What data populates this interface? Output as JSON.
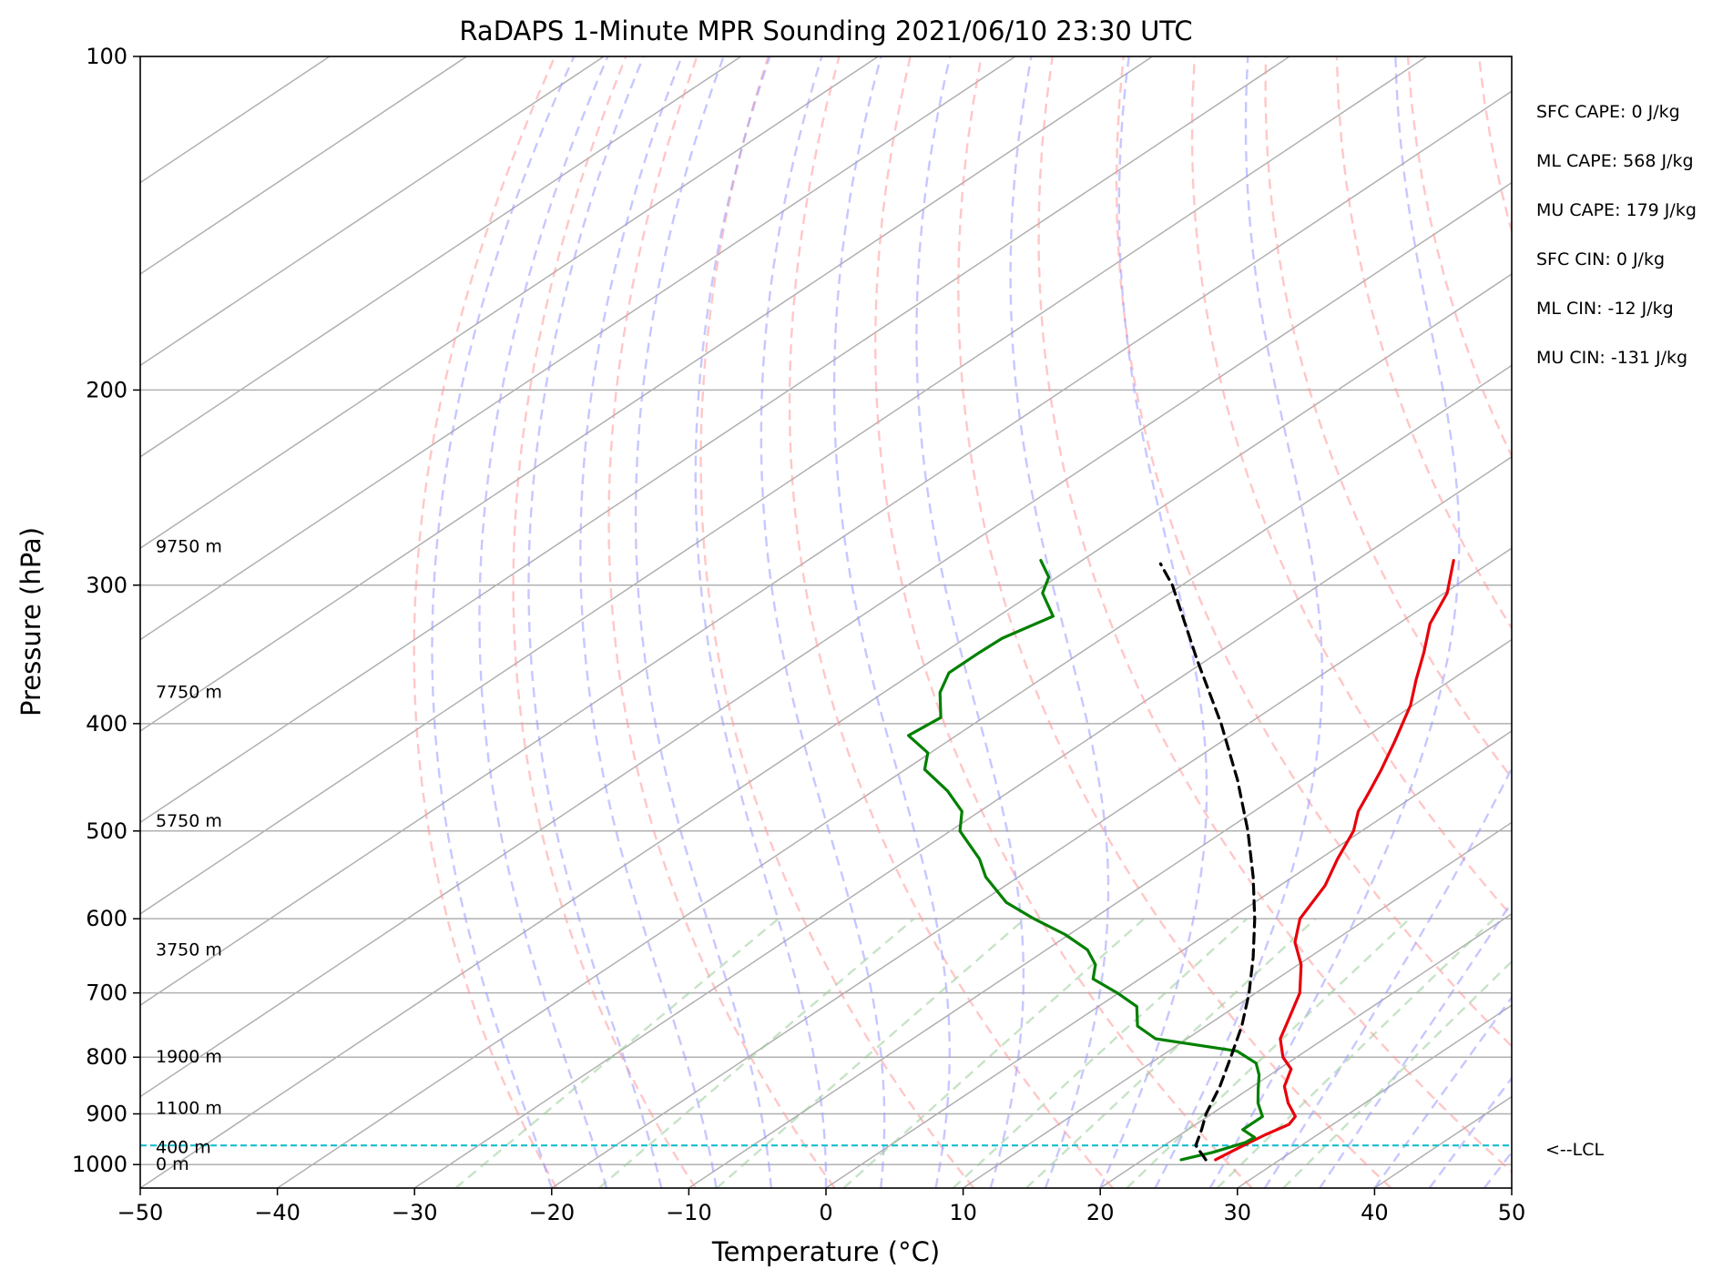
{
  "chart_data": {
    "type": "line",
    "title": "RaDAPS 1-Minute MPR Sounding 2021/06/10 23:30 UTC",
    "xlabel": "Temperature (°C)",
    "ylabel": "Pressure (hPa)",
    "xlim": [
      -50,
      50
    ],
    "ylim": [
      1050,
      100
    ],
    "y_scale": "log",
    "skew": "skew-T",
    "grid": true,
    "x_ticks": [
      -50,
      -40,
      -30,
      -20,
      -10,
      0,
      10,
      20,
      30,
      40,
      50
    ],
    "x_tick_labels": [
      "−50",
      "−40",
      "−30",
      "−20",
      "−10",
      "0",
      "10",
      "20",
      "30",
      "40",
      "50"
    ],
    "y_ticks": [
      1000,
      900,
      800,
      700,
      600,
      500,
      400,
      300,
      200,
      100
    ],
    "y_tick_labels": [
      "1000",
      "900",
      "800",
      "700",
      "600",
      "500",
      "400",
      "300",
      "200",
      "100"
    ],
    "series": [
      {
        "color": "#e8000b",
        "points": [
          {
            "p": 990,
            "t": 25.3
          },
          {
            "p": 965,
            "t": 25.7
          },
          {
            "p": 940,
            "t": 26.2
          },
          {
            "p": 920,
            "t": 26.8
          },
          {
            "p": 905,
            "t": 26.4
          },
          {
            "p": 880,
            "t": 24.4
          },
          {
            "p": 850,
            "t": 22.3
          },
          {
            "p": 820,
            "t": 20.9
          },
          {
            "p": 800,
            "t": 19.0
          },
          {
            "p": 770,
            "t": 16.8
          },
          {
            "p": 740,
            "t": 15.3
          },
          {
            "p": 700,
            "t": 13.2
          },
          {
            "p": 660,
            "t": 10.2
          },
          {
            "p": 630,
            "t": 7.3
          },
          {
            "p": 600,
            "t": 5.1
          },
          {
            "p": 560,
            "t": 3.3
          },
          {
            "p": 530,
            "t": 1.3
          },
          {
            "p": 500,
            "t": -0.6
          },
          {
            "p": 480,
            "t": -2.4
          },
          {
            "p": 460,
            "t": -3.8
          },
          {
            "p": 440,
            "t": -5.3
          },
          {
            "p": 415,
            "t": -7.4
          },
          {
            "p": 385,
            "t": -10.2
          },
          {
            "p": 365,
            "t": -12.6
          },
          {
            "p": 345,
            "t": -15.0
          },
          {
            "p": 325,
            "t": -17.7
          },
          {
            "p": 305,
            "t": -19.8
          },
          {
            "p": 285,
            "t": -22.9
          }
        ]
      },
      {
        "color": "#008000",
        "points": [
          {
            "p": 990,
            "t": 22.8
          },
          {
            "p": 975,
            "t": 24.3
          },
          {
            "p": 955,
            "t": 25.6
          },
          {
            "p": 945,
            "t": 25.7
          },
          {
            "p": 930,
            "t": 24.0
          },
          {
            "p": 905,
            "t": 24.0
          },
          {
            "p": 880,
            "t": 22.2
          },
          {
            "p": 855,
            "t": 20.7
          },
          {
            "p": 830,
            "t": 19.2
          },
          {
            "p": 810,
            "t": 17.7
          },
          {
            "p": 790,
            "t": 15.0
          },
          {
            "p": 770,
            "t": 7.7
          },
          {
            "p": 750,
            "t": 5.0
          },
          {
            "p": 720,
            "t": 2.8
          },
          {
            "p": 700,
            "t": -0.1
          },
          {
            "p": 680,
            "t": -3.4
          },
          {
            "p": 660,
            "t": -4.8
          },
          {
            "p": 640,
            "t": -7.0
          },
          {
            "p": 620,
            "t": -10.3
          },
          {
            "p": 600,
            "t": -14.3
          },
          {
            "p": 580,
            "t": -18.1
          },
          {
            "p": 550,
            "t": -22.4
          },
          {
            "p": 530,
            "t": -24.8
          },
          {
            "p": 500,
            "t": -29.3
          },
          {
            "p": 480,
            "t": -31.3
          },
          {
            "p": 460,
            "t": -34.6
          },
          {
            "p": 440,
            "t": -38.6
          },
          {
            "p": 425,
            "t": -40.2
          },
          {
            "p": 410,
            "t": -43.5
          },
          {
            "p": 395,
            "t": -43.1
          },
          {
            "p": 375,
            "t": -45.9
          },
          {
            "p": 360,
            "t": -47.4
          },
          {
            "p": 345,
            "t": -47.4
          },
          {
            "p": 335,
            "t": -47.3
          },
          {
            "p": 320,
            "t": -46.0
          },
          {
            "p": 305,
            "t": -49.3
          },
          {
            "p": 295,
            "t": -50.6
          },
          {
            "p": 285,
            "t": -53.0
          }
        ]
      },
      {
        "color": "#000000",
        "dashed": true,
        "points": [
          {
            "p": 990,
            "t": 24.6
          },
          {
            "p": 961,
            "t": 22.3
          },
          {
            "p": 930,
            "t": 21.0
          },
          {
            "p": 900,
            "t": 19.6
          },
          {
            "p": 850,
            "t": 17.6
          },
          {
            "p": 800,
            "t": 15.2
          },
          {
            "p": 750,
            "t": 12.6
          },
          {
            "p": 700,
            "t": 9.5
          },
          {
            "p": 650,
            "t": 5.9
          },
          {
            "p": 600,
            "t": 1.8
          },
          {
            "p": 550,
            "t": -2.9
          },
          {
            "p": 500,
            "t": -8.3
          },
          {
            "p": 450,
            "t": -14.6
          },
          {
            "p": 400,
            "t": -22.0
          },
          {
            "p": 350,
            "t": -30.8
          },
          {
            "p": 300,
            "t": -40.7
          },
          {
            "p": 287,
            "t": -43.9
          }
        ]
      }
    ],
    "lcl": {
      "p": 961,
      "label": "<--LCL",
      "color": "#17becf"
    },
    "height_labels": [
      {
        "p": 1000,
        "label": "0 m"
      },
      {
        "p": 965,
        "label": "400 m"
      },
      {
        "p": 890,
        "label": "1100 m"
      },
      {
        "p": 800,
        "label": "1900 m"
      },
      {
        "p": 640,
        "label": "3750 m"
      },
      {
        "p": 490,
        "label": "5750 m"
      },
      {
        "p": 375,
        "label": "7750 m"
      },
      {
        "p": 277,
        "label": "9750 m"
      }
    ],
    "annotations": [
      "SFC CAPE: 0 J/kg",
      "ML CAPE: 568 J/kg",
      "MU CAPE: 179 J/kg",
      "SFC CIN: 0 J/kg",
      "ML CIN: -12 J/kg",
      "MU CIN: -131 J/kg"
    ],
    "legend": "none",
    "reference_lines": {
      "dry_adiabats": {
        "color": "#ff9999"
      },
      "moist_adiabats": {
        "color": "#9999ff"
      },
      "mixing_ratios": {
        "color": "#99cc99"
      }
    }
  }
}
